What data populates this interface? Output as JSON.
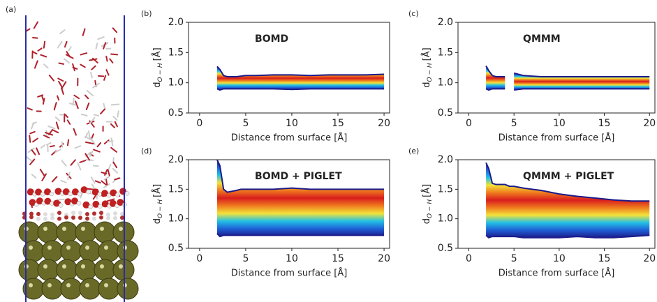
{
  "image_panel": {
    "label": "(a)"
  },
  "chart_data": [
    {
      "type": "density",
      "panel_label": "(b)",
      "title": "BOMD",
      "xlabel": "Distance from surface [Å]",
      "ylabel": {
        "main": "d",
        "sub": "O − H",
        "unit": "[Å]"
      },
      "x": [
        1.9,
        2.2,
        2.6,
        3,
        4,
        4.5,
        5,
        6,
        8,
        10,
        12,
        14,
        16,
        18,
        20
      ],
      "upper": [
        1.27,
        1.22,
        1.12,
        1.1,
        1.1,
        1.11,
        1.12,
        1.12,
        1.13,
        1.13,
        1.12,
        1.13,
        1.13,
        1.13,
        1.14
      ],
      "lower": [
        0.9,
        0.88,
        0.9,
        0.9,
        0.9,
        0.9,
        0.9,
        0.9,
        0.9,
        0.89,
        0.9,
        0.9,
        0.9,
        0.9,
        0.9
      ],
      "colormap": [
        "#1b1b8a",
        "#1f5fd6",
        "#22c0e6",
        "#f2e33a",
        "#f07b1e",
        "#d81e1e"
      ],
      "xlim": [
        -1.2,
        20.6
      ],
      "ylim": [
        0.5,
        2.0
      ],
      "xticks": [
        0,
        5,
        10,
        15,
        20
      ],
      "yticks": [
        0.5,
        {
          "value": 1,
          "label": "1.0"
        },
        1.5,
        {
          "value": 2,
          "label": "2.0"
        }
      ]
    },
    {
      "type": "density",
      "panel_label": "(c)",
      "title": "QMMM",
      "xlabel": "Distance from surface [Å]",
      "ylabel": {
        "main": "d",
        "sub": "O − H",
        "unit": "[Å]"
      },
      "x": [
        1.9,
        2.2,
        2.6,
        3,
        4,
        4.5,
        5,
        6,
        8,
        10,
        12,
        14,
        16,
        18,
        20
      ],
      "upper": [
        1.28,
        1.2,
        1.12,
        1.1,
        1.1,
        null,
        1.16,
        1.12,
        1.1,
        1.1,
        1.1,
        1.1,
        1.1,
        1.1,
        1.1
      ],
      "lower": [
        0.9,
        0.88,
        0.9,
        0.9,
        0.9,
        null,
        0.88,
        0.9,
        0.9,
        0.9,
        0.9,
        0.9,
        0.9,
        0.9,
        0.9
      ],
      "colormap": [
        "#1b1b8a",
        "#1f5fd6",
        "#22c0e6",
        "#f2e33a",
        "#f07b1e",
        "#d81e1e"
      ],
      "xlim": [
        -1.2,
        20.6
      ],
      "ylim": [
        0.5,
        2.0
      ],
      "xticks": [
        0,
        5,
        10,
        15,
        20
      ],
      "yticks": [
        0.5,
        {
          "value": 1,
          "label": "1.0"
        },
        1.5,
        {
          "value": 2,
          "label": "2.0"
        }
      ]
    },
    {
      "type": "density",
      "panel_label": "(d)",
      "title": "BOMD + PIGLET",
      "xlabel": "Distance from surface [Å]",
      "ylabel": {
        "main": "d",
        "sub": "O − H",
        "unit": "[Å]"
      },
      "x": [
        1.9,
        2.2,
        2.6,
        3,
        4,
        4.5,
        5,
        6,
        8,
        10,
        12,
        14,
        16,
        18,
        20
      ],
      "upper": [
        2.0,
        1.9,
        1.5,
        1.45,
        1.48,
        1.5,
        1.5,
        1.5,
        1.5,
        1.52,
        1.5,
        1.5,
        1.5,
        1.5,
        1.5
      ],
      "lower": [
        0.75,
        0.7,
        0.72,
        0.72,
        0.72,
        0.72,
        0.72,
        0.72,
        0.72,
        0.72,
        0.72,
        0.72,
        0.72,
        0.72,
        0.72
      ],
      "colormap": [
        "#1b1b8a",
        "#1f5fd6",
        "#22c0e6",
        "#f2e33a",
        "#f07b1e",
        "#d81e1e"
      ],
      "xlim": [
        -1.2,
        20.6
      ],
      "ylim": [
        0.5,
        2.0
      ],
      "xticks": [
        0,
        5,
        10,
        15,
        20
      ],
      "yticks": [
        0.5,
        {
          "value": 1,
          "label": "1.0"
        },
        1.5,
        {
          "value": 2,
          "label": "2.0"
        }
      ]
    },
    {
      "type": "density",
      "panel_label": "(e)",
      "title": "QMMM + PIGLET",
      "xlabel": "Distance from surface [Å]",
      "ylabel": {
        "main": "d",
        "sub": "O − H",
        "unit": "[Å]"
      },
      "x": [
        1.9,
        2.2,
        2.6,
        3,
        4,
        4.5,
        5,
        6,
        8,
        10,
        12,
        14,
        16,
        18,
        20
      ],
      "upper": [
        1.95,
        1.85,
        1.6,
        1.58,
        1.58,
        1.55,
        1.55,
        1.52,
        1.48,
        1.42,
        1.38,
        1.35,
        1.32,
        1.3,
        1.3
      ],
      "lower": [
        0.72,
        0.68,
        0.7,
        0.7,
        0.7,
        0.7,
        0.7,
        0.68,
        0.68,
        0.68,
        0.7,
        0.68,
        0.68,
        0.7,
        0.72
      ],
      "colormap": [
        "#1b1b8a",
        "#1f5fd6",
        "#22c0e6",
        "#f2e33a",
        "#f07b1e",
        "#d81e1e"
      ],
      "xlim": [
        -1.2,
        20.6
      ],
      "ylim": [
        0.5,
        2.0
      ],
      "xticks": [
        0,
        5,
        10,
        15,
        20
      ],
      "yticks": [
        0.5,
        {
          "value": 1,
          "label": "1.0"
        },
        1.5,
        {
          "value": 2,
          "label": "2.0"
        }
      ]
    }
  ]
}
